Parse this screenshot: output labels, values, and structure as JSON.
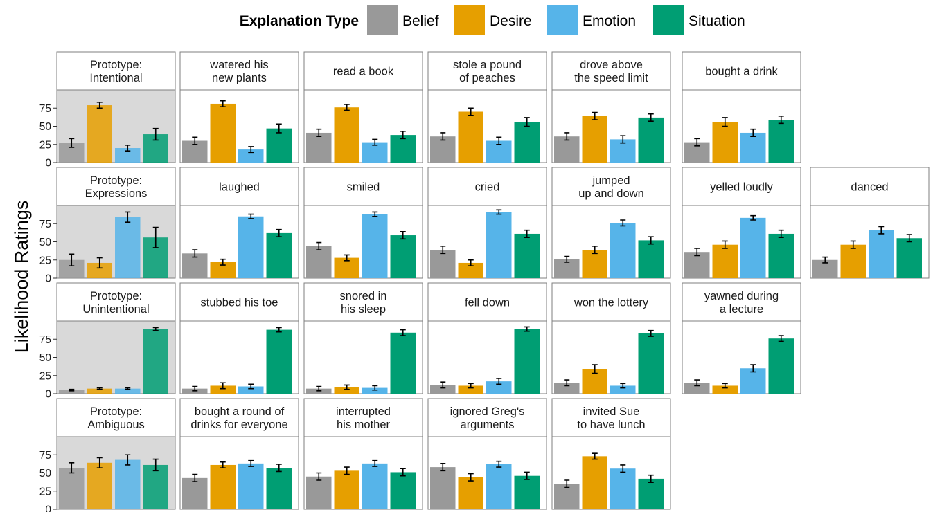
{
  "chart_data": {
    "type": "bar",
    "ylabel": "Likelihood Ratings",
    "xlabel": "",
    "ylim": [
      0,
      100
    ],
    "yticks": [
      0,
      25,
      50,
      75
    ],
    "grid": false,
    "legend": {
      "title": "Explanation Type",
      "placement": "top-center",
      "entries": [
        "Belief",
        "Desire",
        "Emotion",
        "Situation"
      ]
    },
    "series_colors": {
      "Belief": "#999999",
      "Desire": "#E69F00",
      "Emotion": "#56B4E9",
      "Situation": "#009E73"
    },
    "prototype_panel_background": "#d9d9d9",
    "panels": [
      {
        "row": 0,
        "col": 0,
        "title": [
          "Prototype:",
          "Intentional"
        ],
        "prototype": true,
        "values": [
          27,
          79,
          20,
          39
        ],
        "errors": [
          6,
          4,
          4,
          8
        ]
      },
      {
        "row": 0,
        "col": 1,
        "title": [
          "watered his",
          "new plants"
        ],
        "values": [
          30,
          81,
          18,
          47
        ],
        "errors": [
          5,
          4,
          4,
          6
        ]
      },
      {
        "row": 0,
        "col": 2,
        "title": [
          "read a book"
        ],
        "values": [
          41,
          76,
          28,
          38
        ],
        "errors": [
          5,
          4,
          4,
          5
        ]
      },
      {
        "row": 0,
        "col": 3,
        "title": [
          "stole a pound",
          "of peaches"
        ],
        "values": [
          36,
          70,
          30,
          56
        ],
        "errors": [
          5,
          5,
          5,
          6
        ]
      },
      {
        "row": 0,
        "col": 4,
        "title": [
          "drove above",
          "the speed limit"
        ],
        "values": [
          36,
          64,
          32,
          62
        ],
        "errors": [
          5,
          5,
          5,
          5
        ]
      },
      {
        "row": 0,
        "col": 5,
        "title": [
          "bought a drink"
        ],
        "values": [
          28,
          56,
          41,
          59
        ],
        "errors": [
          5,
          6,
          5,
          5
        ]
      },
      {
        "row": 1,
        "col": 0,
        "title": [
          "Prototype:",
          "Expressions"
        ],
        "prototype": true,
        "values": [
          25,
          21,
          84,
          56
        ],
        "errors": [
          8,
          7,
          7,
          14
        ]
      },
      {
        "row": 1,
        "col": 1,
        "title": [
          "laughed"
        ],
        "values": [
          34,
          22,
          85,
          62
        ],
        "errors": [
          5,
          4,
          3,
          5
        ]
      },
      {
        "row": 1,
        "col": 2,
        "title": [
          "smiled"
        ],
        "values": [
          44,
          28,
          88,
          59
        ],
        "errors": [
          5,
          4,
          3,
          5
        ]
      },
      {
        "row": 1,
        "col": 3,
        "title": [
          "cried"
        ],
        "values": [
          39,
          21,
          91,
          61
        ],
        "errors": [
          5,
          4,
          3,
          5
        ]
      },
      {
        "row": 1,
        "col": 4,
        "title": [
          "jumped",
          "up and down"
        ],
        "values": [
          26,
          39,
          76,
          52
        ],
        "errors": [
          4,
          5,
          4,
          5
        ]
      },
      {
        "row": 1,
        "col": 5,
        "title": [
          "yelled loudly"
        ],
        "values": [
          36,
          46,
          83,
          61
        ],
        "errors": [
          5,
          5,
          3,
          5
        ]
      },
      {
        "row": 1,
        "col": 6,
        "title": [
          "danced"
        ],
        "values": [
          25,
          46,
          66,
          55
        ],
        "errors": [
          4,
          5,
          5,
          5
        ]
      },
      {
        "row": 2,
        "col": 0,
        "title": [
          "Prototype:",
          "Unintentional"
        ],
        "prototype": true,
        "values": [
          5,
          7,
          7,
          89
        ],
        "errors": [
          1,
          1,
          1,
          2
        ]
      },
      {
        "row": 2,
        "col": 1,
        "title": [
          "stubbed his toe"
        ],
        "values": [
          7,
          11,
          10,
          88
        ],
        "errors": [
          3,
          4,
          3,
          3
        ]
      },
      {
        "row": 2,
        "col": 2,
        "title": [
          "snored in",
          "his sleep"
        ],
        "values": [
          7,
          9,
          8,
          84
        ],
        "errors": [
          3,
          3,
          3,
          4
        ]
      },
      {
        "row": 2,
        "col": 3,
        "title": [
          "fell down"
        ],
        "values": [
          12,
          11,
          17,
          89
        ],
        "errors": [
          4,
          3,
          4,
          3
        ]
      },
      {
        "row": 2,
        "col": 4,
        "title": [
          "won the lottery"
        ],
        "values": [
          15,
          34,
          11,
          83
        ],
        "errors": [
          4,
          6,
          3,
          4
        ]
      },
      {
        "row": 2,
        "col": 5,
        "title": [
          "yawned during",
          "a lecture"
        ],
        "values": [
          15,
          11,
          35,
          76
        ],
        "errors": [
          4,
          3,
          5,
          4
        ]
      },
      {
        "row": 3,
        "col": 0,
        "title": [
          "Prototype:",
          "Ambiguous"
        ],
        "prototype": true,
        "values": [
          57,
          64,
          68,
          61
        ],
        "errors": [
          7,
          7,
          7,
          8
        ]
      },
      {
        "row": 3,
        "col": 1,
        "title": [
          "bought a round of",
          "drinks for everyone"
        ],
        "values": [
          43,
          61,
          63,
          57
        ],
        "errors": [
          5,
          4,
          4,
          5
        ]
      },
      {
        "row": 3,
        "col": 2,
        "title": [
          "interrupted",
          "his mother"
        ],
        "values": [
          45,
          53,
          63,
          51
        ],
        "errors": [
          5,
          5,
          4,
          5
        ]
      },
      {
        "row": 3,
        "col": 3,
        "title": [
          "ignored Greg's",
          "arguments"
        ],
        "values": [
          58,
          44,
          62,
          46
        ],
        "errors": [
          5,
          5,
          4,
          5
        ]
      },
      {
        "row": 3,
        "col": 4,
        "title": [
          "invited Sue",
          "to have lunch"
        ],
        "values": [
          35,
          73,
          56,
          42
        ],
        "errors": [
          5,
          4,
          5,
          5
        ]
      }
    ]
  }
}
